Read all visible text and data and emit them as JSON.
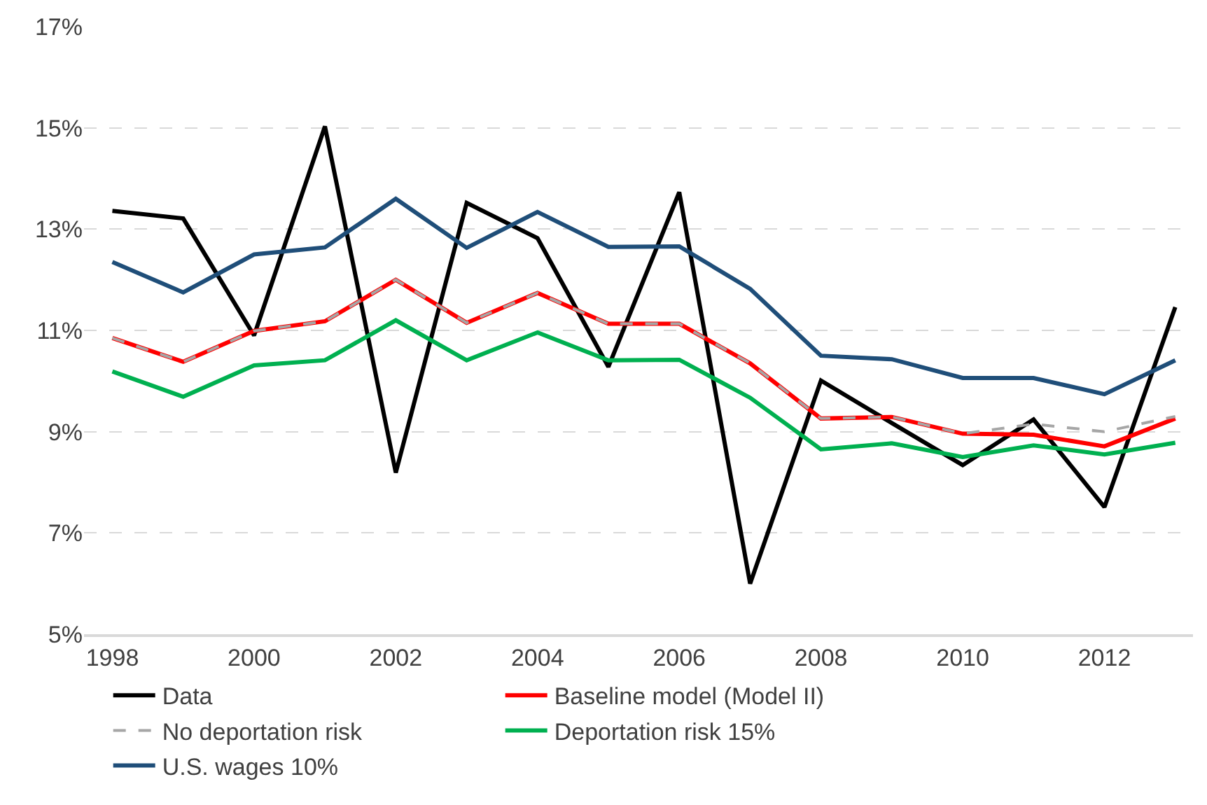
{
  "chart_data": {
    "type": "line",
    "x": [
      1998,
      1999,
      2000,
      2001,
      2002,
      2003,
      2004,
      2005,
      2006,
      2007,
      2008,
      2009,
      2010,
      2011,
      2012,
      2013
    ],
    "series": [
      {
        "name": "Data",
        "color": "#000000",
        "values": [
          13.36,
          13.21,
          10.9,
          15.03,
          8.19,
          13.52,
          12.82,
          10.28,
          13.73,
          6.0,
          10.01,
          9.17,
          8.34,
          9.24,
          7.51,
          11.46
        ]
      },
      {
        "name": "Baseline model (Model II)",
        "color": "#ff0000",
        "values": [
          10.85,
          10.38,
          10.99,
          11.18,
          12.0,
          11.15,
          11.74,
          11.13,
          11.13,
          10.35,
          9.26,
          9.29,
          8.96,
          8.94,
          8.71,
          9.26
        ]
      },
      {
        "name": "No deportation risk",
        "color": "#a6a6a6",
        "line_style": "dashed",
        "values": [
          10.85,
          10.38,
          10.99,
          11.18,
          12.0,
          11.15,
          11.74,
          11.13,
          11.13,
          10.35,
          9.26,
          9.29,
          8.96,
          9.15,
          9.0,
          9.3
        ]
      },
      {
        "name": "Deportation risk 15%",
        "color": "#00b050",
        "values": [
          10.19,
          9.69,
          10.31,
          10.41,
          11.2,
          10.41,
          10.96,
          10.41,
          10.42,
          9.67,
          8.65,
          8.77,
          8.5,
          8.73,
          8.55,
          8.78
        ]
      },
      {
        "name": "U.S. wages 10%",
        "color": "#1f4e79",
        "values": [
          12.35,
          11.75,
          12.5,
          12.64,
          13.6,
          12.63,
          13.34,
          12.65,
          12.66,
          11.82,
          10.5,
          10.43,
          10.06,
          10.06,
          9.74,
          10.41
        ]
      }
    ],
    "xlim": [
      1997.6,
      2013.25
    ],
    "xticks": [
      1998,
      2000,
      2002,
      2004,
      2006,
      2008,
      2010,
      2012
    ],
    "ylim": [
      5,
      17
    ],
    "yticks": [
      {
        "value": 5,
        "label": "5%"
      },
      {
        "value": 7,
        "label": "7%"
      },
      {
        "value": 9,
        "label": "9%"
      },
      {
        "value": 11,
        "label": "11%"
      },
      {
        "value": 13,
        "label": "13%"
      },
      {
        "value": 15,
        "label": "15%"
      },
      {
        "value": 17,
        "label": "17%"
      }
    ],
    "grid": "y",
    "legend": "bottom",
    "marker": "none",
    "line_style": "solid"
  }
}
